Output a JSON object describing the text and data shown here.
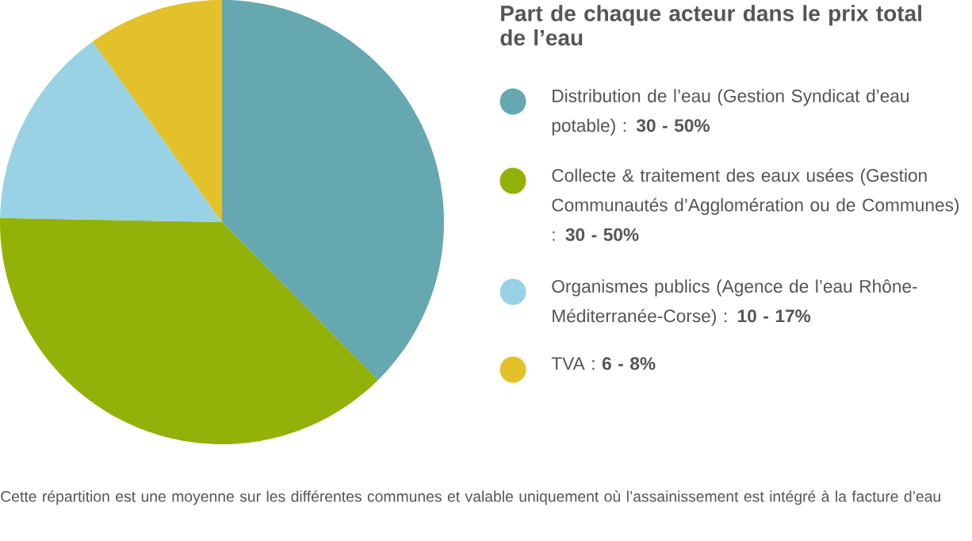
{
  "chart_data": {
    "type": "pie",
    "title": "Part de chaque acteur dans le prix total de l’eau",
    "categories": [
      "Distribution de l’eau (Gestion Syndicat d’eau potable) : **30 - 50%**",
      "Collecte & traitement des eaux usées (Gestion Communautés d’Agglomération ou de Communes) : **30 - 50%**",
      "Organismes publics (Agence de l’eau Rhône-Méditerranée-Corse) : **10 - 17%**",
      "TVA : **6 - 8%**"
    ],
    "values": [
      37.6,
      37.7,
      14.8,
      9.9
    ],
    "colors": [
      "#65a8b0",
      "#93b209",
      "#99d2e4",
      "#e2c12a"
    ],
    "legend": "right",
    "annotations": [
      "Cette répartition est une moyenne sur les différentes communes et valable uniquement où l’assainissement est intégré à la facture d’eau"
    ]
  }
}
